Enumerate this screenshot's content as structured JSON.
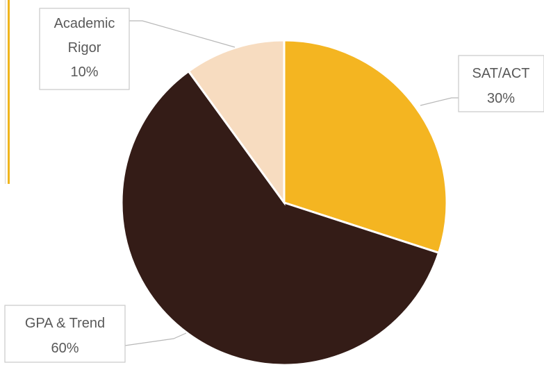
{
  "chart_data": {
    "type": "pie",
    "categories": [
      "SAT/ACT",
      "GPA & Trend",
      "Academic Rigor"
    ],
    "values": [
      30,
      60,
      10
    ],
    "colors": [
      "#f4b521",
      "#341c17",
      "#f7dcc0"
    ],
    "start_angle_deg": 0,
    "direction": "clockwise",
    "labels": {
      "sat_act": {
        "name": "SAT/ACT",
        "percent": "30%"
      },
      "gpa_trend": {
        "name": "GPA & Trend",
        "percent": "60%"
      },
      "academic_rigor": {
        "name_line1": "Academic",
        "name_line2": "Rigor",
        "percent": "10%"
      }
    },
    "accent_color": "#f0b51e"
  }
}
